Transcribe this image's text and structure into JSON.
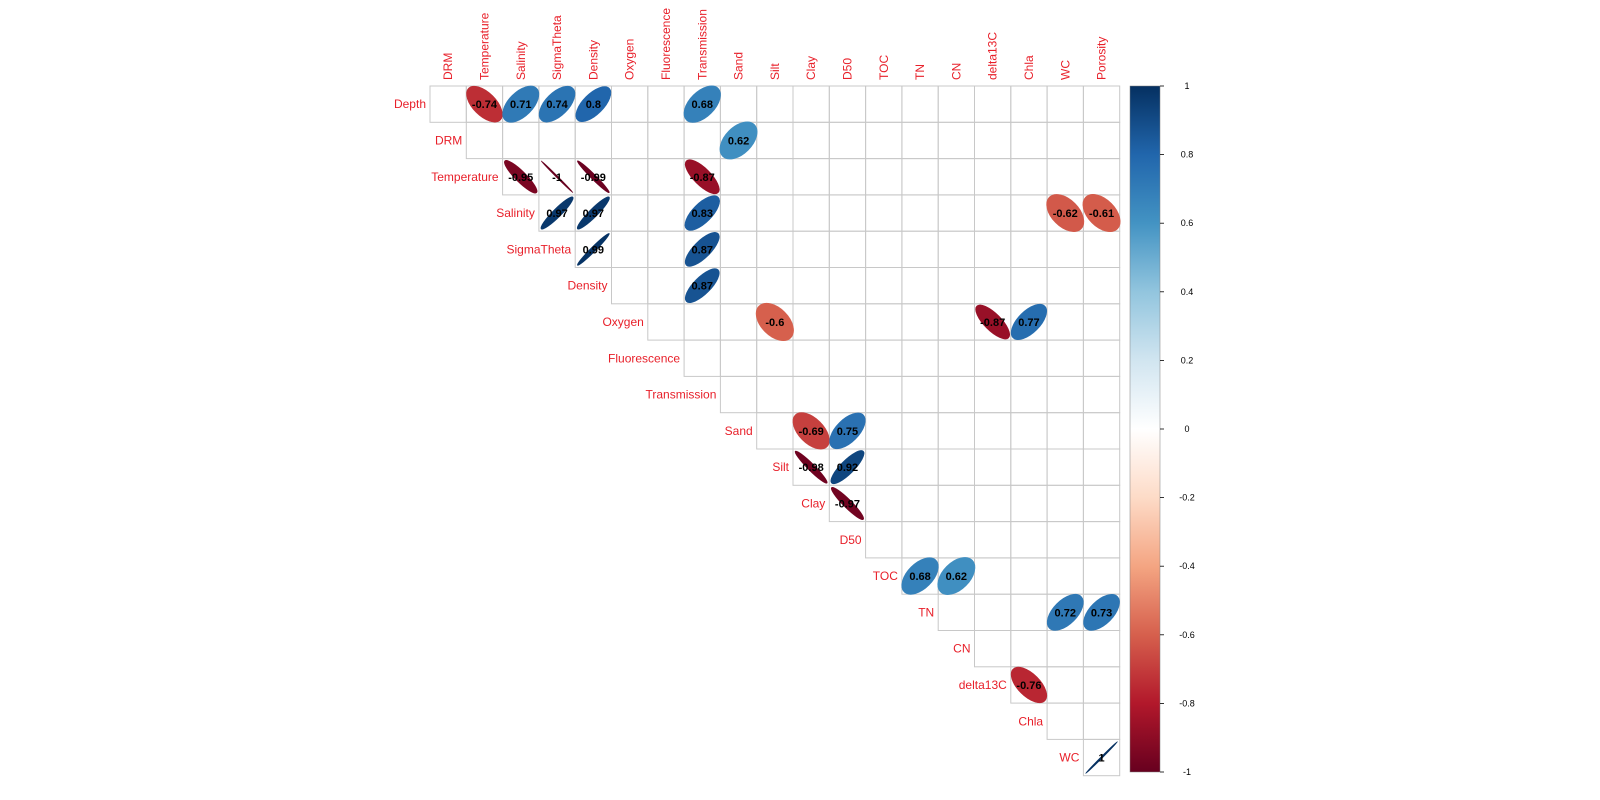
{
  "chart_data": {
    "type": "heatmap",
    "method": "ellipse",
    "layout": "upper-triangle",
    "show_significant_only": true,
    "row_labels": [
      "Depth",
      "DRM",
      "Temperature",
      "Salinity",
      "SigmaTheta",
      "Density",
      "Oxygen",
      "Fluorescence",
      "Transmission",
      "Sand",
      "Silt",
      "Clay",
      "D50",
      "TOC",
      "TN",
      "CN",
      "delta13C",
      "Chla",
      "WC"
    ],
    "col_labels": [
      "DRM",
      "Temperature",
      "Salinity",
      "SigmaTheta",
      "Density",
      "Oxygen",
      "Fluorescence",
      "Transmission",
      "Sand",
      "Silt",
      "Clay",
      "D50",
      "TOC",
      "TN",
      "CN",
      "delta13C",
      "Chla",
      "WC",
      "Porosity"
    ],
    "cells": [
      {
        "row": "Depth",
        "col": "Temperature",
        "value": -0.74,
        "label": "-0.74"
      },
      {
        "row": "Depth",
        "col": "Salinity",
        "value": 0.71,
        "label": "0.71"
      },
      {
        "row": "Depth",
        "col": "SigmaTheta",
        "value": 0.74,
        "label": "0.74"
      },
      {
        "row": "Depth",
        "col": "Density",
        "value": 0.8,
        "label": "0.8"
      },
      {
        "row": "Depth",
        "col": "Transmission",
        "value": 0.68,
        "label": "0.68"
      },
      {
        "row": "DRM",
        "col": "Sand",
        "value": 0.62,
        "label": "0.62"
      },
      {
        "row": "Temperature",
        "col": "Salinity",
        "value": -0.95,
        "label": "-0.95"
      },
      {
        "row": "Temperature",
        "col": "SigmaTheta",
        "value": -1,
        "label": "-1"
      },
      {
        "row": "Temperature",
        "col": "Density",
        "value": -0.99,
        "label": "-0.99"
      },
      {
        "row": "Temperature",
        "col": "Transmission",
        "value": -0.87,
        "label": "-0.87"
      },
      {
        "row": "Salinity",
        "col": "SigmaTheta",
        "value": 0.97,
        "label": "0.97"
      },
      {
        "row": "Salinity",
        "col": "Density",
        "value": 0.97,
        "label": "0.97"
      },
      {
        "row": "Salinity",
        "col": "Transmission",
        "value": 0.83,
        "label": "0.83"
      },
      {
        "row": "Salinity",
        "col": "WC",
        "value": -0.62,
        "label": "-0.62"
      },
      {
        "row": "Salinity",
        "col": "Porosity",
        "value": -0.61,
        "label": "-0.61"
      },
      {
        "row": "SigmaTheta",
        "col": "Density",
        "value": 0.99,
        "label": "0.99"
      },
      {
        "row": "SigmaTheta",
        "col": "Transmission",
        "value": 0.87,
        "label": "0.87"
      },
      {
        "row": "Density",
        "col": "Transmission",
        "value": 0.87,
        "label": "0.87"
      },
      {
        "row": "Oxygen",
        "col": "Silt",
        "value": -0.6,
        "label": "-0.6"
      },
      {
        "row": "Oxygen",
        "col": "delta13C",
        "value": -0.87,
        "label": "-0.87"
      },
      {
        "row": "Oxygen",
        "col": "Chla",
        "value": 0.77,
        "label": "0.77"
      },
      {
        "row": "Sand",
        "col": "Clay",
        "value": -0.69,
        "label": "-0.69"
      },
      {
        "row": "Sand",
        "col": "D50",
        "value": 0.75,
        "label": "0.75"
      },
      {
        "row": "Silt",
        "col": "Clay",
        "value": -0.98,
        "label": "-0.98"
      },
      {
        "row": "Silt",
        "col": "D50",
        "value": 0.92,
        "label": "0.92"
      },
      {
        "row": "Clay",
        "col": "D50",
        "value": -0.97,
        "label": "-0.97"
      },
      {
        "row": "TOC",
        "col": "TN",
        "value": 0.68,
        "label": "0.68"
      },
      {
        "row": "TOC",
        "col": "CN",
        "value": 0.62,
        "label": "0.62"
      },
      {
        "row": "TN",
        "col": "WC",
        "value": 0.72,
        "label": "0.72"
      },
      {
        "row": "TN",
        "col": "Porosity",
        "value": 0.73,
        "label": "0.73"
      },
      {
        "row": "delta13C",
        "col": "Chla",
        "value": -0.76,
        "label": "-0.76"
      },
      {
        "row": "WC",
        "col": "Porosity",
        "value": 1,
        "label": "1"
      }
    ],
    "colorbar": {
      "range": [
        -1,
        1
      ],
      "ticks": [
        "1",
        "0.8",
        "0.6",
        "0.4",
        "0.2",
        "0",
        "-0.2",
        "-0.4",
        "-0.6",
        "-0.8",
        "-1"
      ],
      "colors": {
        "neg": "#67001f",
        "mid": "#ffffff",
        "pos": "#053061"
      }
    },
    "label_color": "#e8202a",
    "grid_color": "#c8c8c8"
  }
}
